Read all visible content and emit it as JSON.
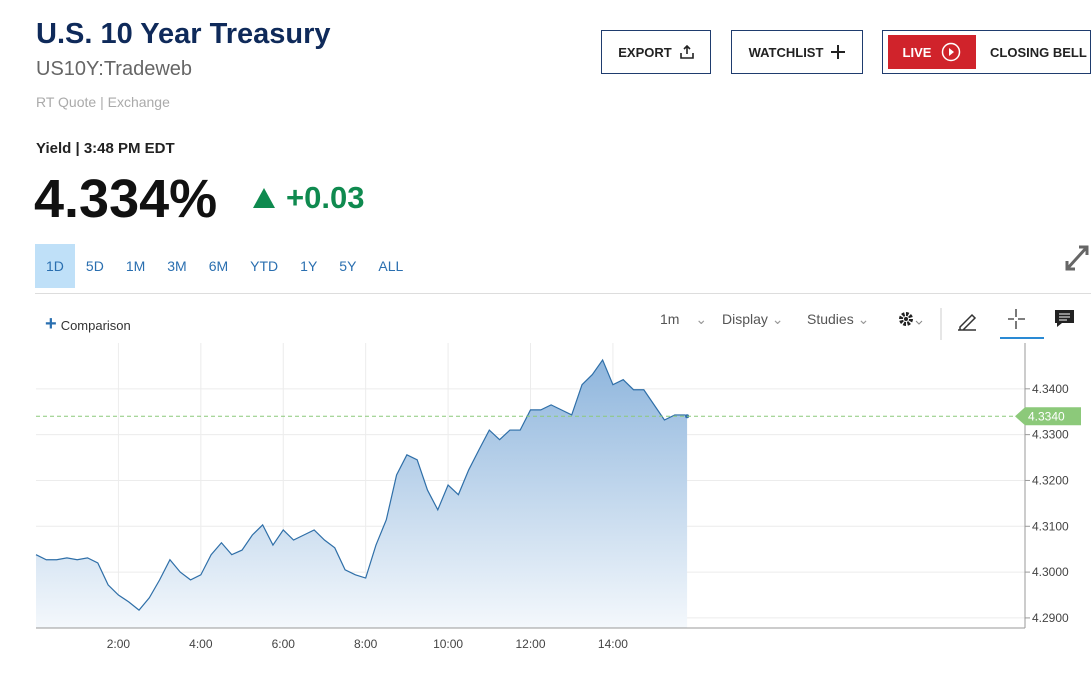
{
  "header": {
    "title": "U.S. 10 Year Treasury",
    "symbol": "US10Y:Tradeweb",
    "quote_source": "RT Quote | Exchange",
    "buttons": [
      "EXPORT",
      "WATCHLIST"
    ],
    "live": "LIVE",
    "closing_bell": "CLOSING BELL"
  },
  "quote": {
    "label": "Yield | 3:48 PM EDT",
    "price": "4.334%",
    "change": "+0.03"
  },
  "tabs": [
    "1D",
    "5D",
    "1M",
    "3M",
    "6M",
    "YTD",
    "1Y",
    "5Y",
    "ALL"
  ],
  "toolbar": {
    "comparison": "Comparison",
    "interval": "1m",
    "display": "Display",
    "studies": "Studies"
  },
  "chart_data": {
    "type": "area",
    "x": [
      0,
      0.25,
      0.5,
      0.75,
      1,
      1.25,
      1.5,
      1.75,
      2,
      2.25,
      2.5,
      2.75,
      3,
      3.25,
      3.5,
      3.75,
      4,
      4.25,
      4.5,
      4.75,
      5,
      5.25,
      5.5,
      5.75,
      6,
      6.25,
      6.5,
      6.75,
      7,
      7.25,
      7.5,
      7.75,
      8,
      8.25,
      8.5,
      8.75,
      9,
      9.25,
      9.5,
      9.75,
      10,
      10.25,
      10.5,
      10.75,
      11,
      11.25,
      11.5,
      11.75,
      12,
      12.25,
      12.5,
      12.75,
      13,
      13.25,
      13.5,
      13.75,
      14,
      14.25,
      14.5,
      14.75,
      15,
      15.25,
      15.5,
      15.75,
      15.8
    ],
    "series": [
      {
        "name": "US10Y",
        "color": "#2f6fa8",
        "values": [
          4.3038,
          4.3027,
          4.3027,
          4.3031,
          4.3027,
          4.3031,
          4.302,
          4.2972,
          4.295,
          4.2935,
          4.2917,
          4.2944,
          4.2983,
          4.3027,
          4.3,
          4.2983,
          4.2994,
          4.3038,
          4.3064,
          4.3038,
          4.3048,
          4.3081,
          4.3103,
          4.3059,
          4.3092,
          4.307,
          4.3081,
          4.3092,
          4.307,
          4.3053,
          4.3005,
          4.2994,
          4.2987,
          4.3059,
          4.3114,
          4.3212,
          4.3256,
          4.3245,
          4.3179,
          4.3136,
          4.319,
          4.3169,
          4.3223,
          4.3267,
          4.331,
          4.3289,
          4.331,
          4.331,
          4.3354,
          4.3354,
          4.3365,
          4.3354,
          4.3343,
          4.3409,
          4.3431,
          4.3463,
          4.3409,
          4.342,
          4.3398,
          4.3398,
          4.3365,
          4.3332,
          4.3343,
          4.3343,
          4.334
        ]
      }
    ],
    "xlim": [
      0,
      24
    ],
    "ylim": [
      4.2878,
      4.35
    ],
    "xticks": [
      {
        "value": 2,
        "label": "2:00"
      },
      {
        "value": 4,
        "label": "4:00"
      },
      {
        "value": 6,
        "label": "6:00"
      },
      {
        "value": 8,
        "label": "8:00"
      },
      {
        "value": 10,
        "label": "10:00"
      },
      {
        "value": 12,
        "label": "12:00"
      },
      {
        "value": 14,
        "label": "14:00"
      }
    ],
    "yticks": [
      {
        "value": 4.29,
        "label": "4.2900"
      },
      {
        "value": 4.3,
        "label": "4.3000"
      },
      {
        "value": 4.31,
        "label": "4.3100"
      },
      {
        "value": 4.32,
        "label": "4.3200"
      },
      {
        "value": 4.33,
        "label": "4.3300"
      },
      {
        "value": 4.34,
        "label": "4.3400"
      }
    ],
    "last_price": {
      "value": 4.334,
      "label": "4.3340",
      "color": "#8cc97a"
    },
    "grid": true
  }
}
